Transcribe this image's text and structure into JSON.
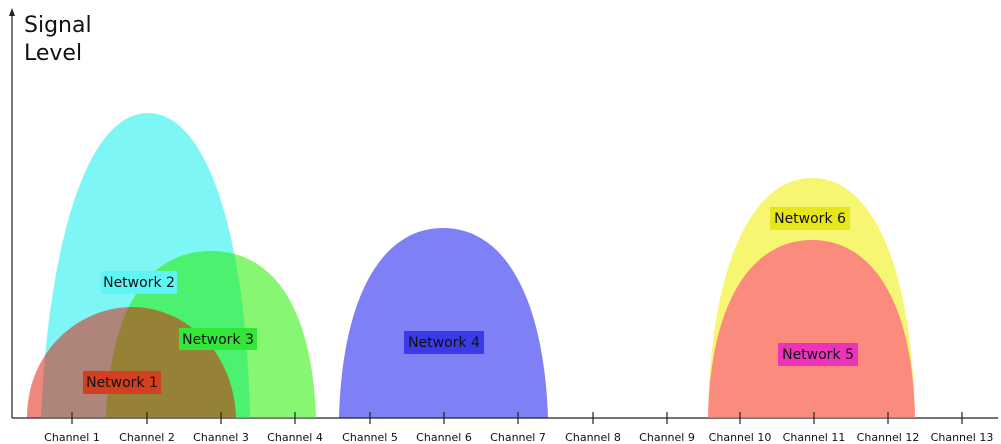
{
  "y_axis_label_line1": "Signal",
  "y_axis_label_line2": "Level",
  "channels": [
    "Channel 1",
    "Channel 2",
    "Channel 3",
    "Channel 4",
    "Channel 5",
    "Channel 6",
    "Channel 7",
    "Channel 8",
    "Channel 9",
    "Channel 10",
    "Channel 11",
    "Channel 12",
    "Channel 13"
  ],
  "networks": [
    {
      "label": "Network 2",
      "color": "#00eeee",
      "label_bg": "#5ff5f5",
      "fill_opacity": 0.5
    },
    {
      "label": "Network 3",
      "color": "#22ee00",
      "label_bg": "#33e63a",
      "fill_opacity": 0.55
    },
    {
      "label": "Network 1",
      "color": "#dd1100",
      "label_bg": "#d2401f",
      "fill_opacity": 0.5
    },
    {
      "label": "Network 4",
      "color": "#0000ee",
      "label_bg": "#3a3ae8",
      "fill_opacity": 0.5
    },
    {
      "label": "Network 6",
      "color": "#eeee00",
      "label_bg": "#e6e61a",
      "fill_opacity": 0.55
    },
    {
      "label": "Network 5",
      "color": "#ff2288",
      "label_bg": "#ee33bb",
      "fill_opacity": 0.5
    }
  ]
}
